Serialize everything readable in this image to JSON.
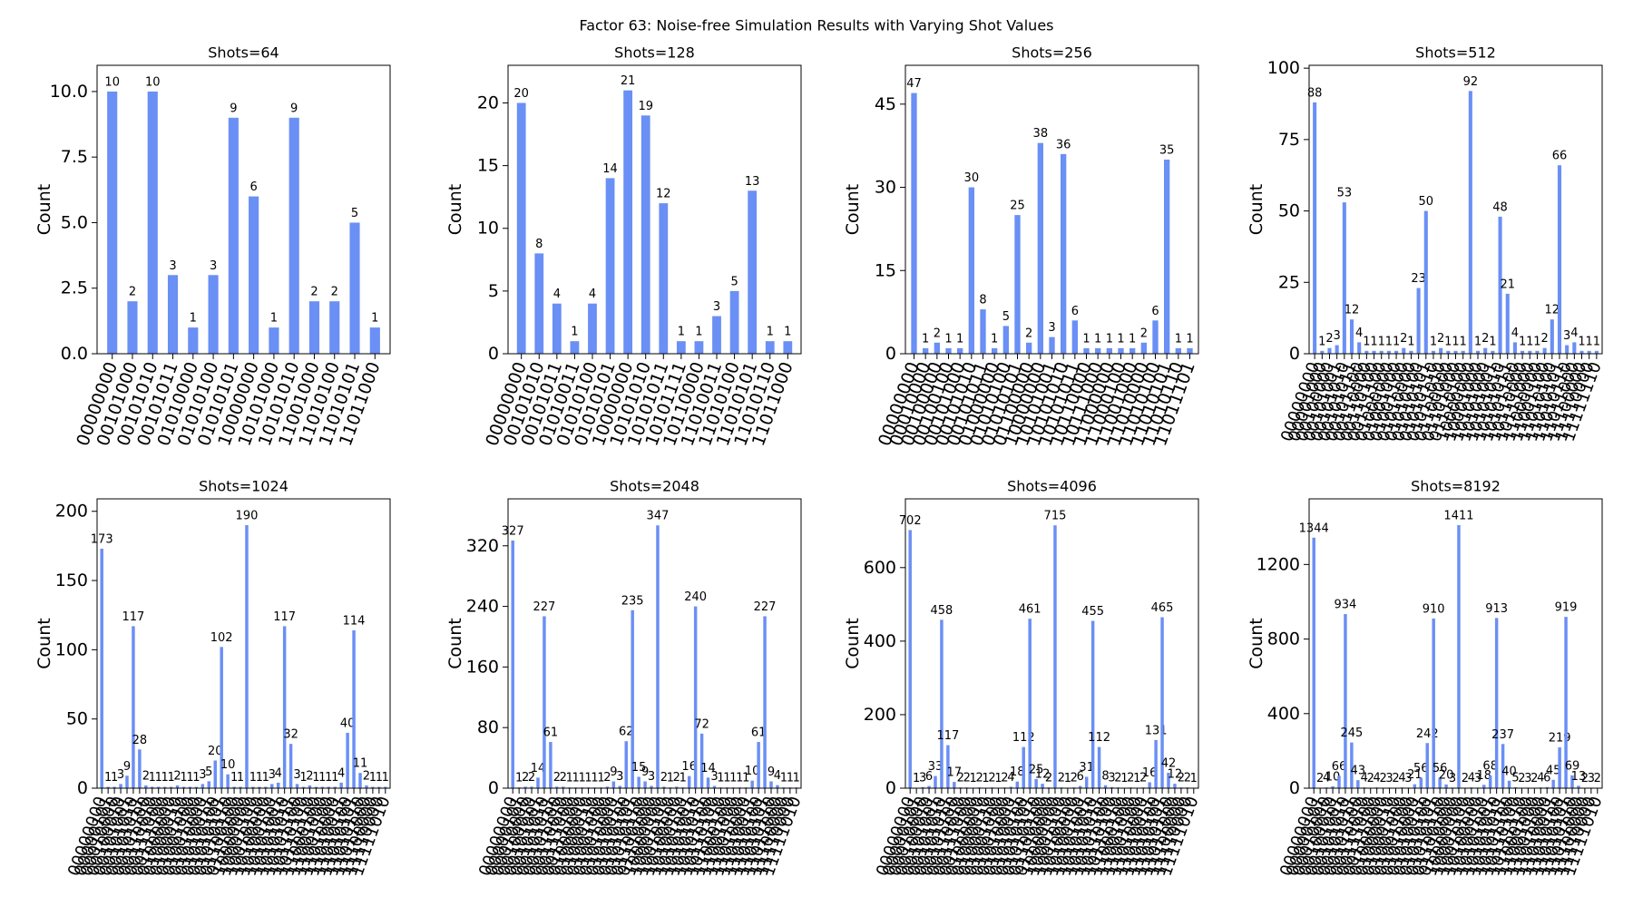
{
  "title": "Factor 63: Noise-free Simulation Results with Varying Shot Values",
  "chart_data": [
    {
      "type": "bar",
      "title": "Shots=64",
      "ylabel": "Count",
      "color": "#6a8ff5",
      "categories": [
        "00000000",
        "00101000",
        "00101010",
        "00101011",
        "01010000",
        "01010100",
        "01010101",
        "10000000",
        "10101000",
        "10101010",
        "11001000",
        "11010100",
        "11010101",
        "11011000"
      ],
      "values": [
        10,
        2,
        10,
        3,
        1,
        3,
        9,
        6,
        1,
        9,
        2,
        2,
        5,
        1
      ],
      "ylim": [
        0,
        11
      ],
      "yticks": [
        {
          "value": 0,
          "label": "0.0"
        },
        {
          "value": 2.5,
          "label": "2.5"
        },
        {
          "value": 5,
          "label": "5.0"
        },
        {
          "value": 7.5,
          "label": "7.5"
        },
        {
          "value": 10,
          "label": "10.0"
        }
      ]
    },
    {
      "type": "bar",
      "title": "Shots=128",
      "ylabel": "Count",
      "color": "#6a8ff5",
      "categories": [
        "00000000",
        "00101010",
        "00101011",
        "01010011",
        "01010100",
        "01010101",
        "10000000",
        "10101010",
        "10101011",
        "10101111",
        "10110000",
        "11010011",
        "11010100",
        "11010101",
        "11010110",
        "11011000"
      ],
      "values": [
        20,
        8,
        4,
        1,
        4,
        14,
        21,
        19,
        12,
        1,
        1,
        3,
        5,
        13,
        1,
        1
      ],
      "ylim": [
        0,
        23
      ],
      "yticks": [
        0,
        5,
        10,
        15,
        20
      ]
    },
    {
      "type": "bar",
      "title": "Shots=256",
      "ylabel": "Count",
      "color": "#6a8ff5",
      "categories": [
        "00000000",
        "00010000",
        "00100000",
        "00100100",
        "00101000",
        "00101010",
        "00101011",
        "01000000",
        "01010100",
        "01010101",
        "01100000",
        "10000000",
        "10101001",
        "10101010",
        "10101011",
        "10110000",
        "10111000",
        "11000000",
        "11000100",
        "11001000",
        "11010000",
        "11010100",
        "11010101",
        "11010110",
        "11011101"
      ],
      "values": [
        47,
        1,
        2,
        1,
        1,
        30,
        8,
        1,
        5,
        25,
        2,
        38,
        3,
        36,
        6,
        1,
        1,
        1,
        1,
        1,
        2,
        6,
        35,
        1,
        1
      ],
      "ylim": [
        0,
        52
      ],
      "yticks": [
        0,
        15,
        30,
        45
      ]
    },
    {
      "type": "bar",
      "title": "Shots=512",
      "ylabel": "Count",
      "color": "#6a8ff5",
      "categories": [
        "00000000",
        "00001000",
        "00100000",
        "00101001",
        "00101010",
        "00101011",
        "00101100",
        "00110000",
        "00110100",
        "00111100",
        "01000000",
        "01001000",
        "01001100",
        "01010000",
        "01010100",
        "01010101",
        "01010110",
        "01011010",
        "01100000",
        "01101000",
        "01110100",
        "10000000",
        "10001000",
        "10101000",
        "10101001",
        "10101010",
        "10101011",
        "10101100",
        "10110000",
        "10111000",
        "11000000",
        "11001100",
        "11010100",
        "11010101",
        "11010110",
        "11011000",
        "11100000",
        "11110000",
        "11111110"
      ],
      "values": [
        88,
        1,
        2,
        3,
        53,
        12,
        4,
        1,
        1,
        1,
        1,
        1,
        2,
        1,
        23,
        50,
        1,
        2,
        1,
        1,
        1,
        92,
        1,
        2,
        1,
        48,
        21,
        4,
        1,
        1,
        1,
        2,
        12,
        66,
        3,
        4,
        1,
        1,
        1
      ],
      "ylim": [
        0,
        101
      ],
      "yticks": [
        0,
        25,
        50,
        75,
        100
      ]
    },
    {
      "type": "bar",
      "title": "Shots=1024",
      "ylabel": "Count",
      "color": "#6a8ff5",
      "categories": [
        "00000000",
        "00000101",
        "00010000",
        "00100010",
        "00101001",
        "00101010",
        "00101011",
        "00101100",
        "00110010",
        "00111000",
        "00111100",
        "01000000",
        "01000010",
        "01000110",
        "01001000",
        "01001100",
        "01010000",
        "01010011",
        "01010100",
        "01010101",
        "01010110",
        "01100100",
        "01110000",
        "10000000",
        "10001100",
        "10010110",
        "10100000",
        "10100110",
        "10101001",
        "10101010",
        "10101011",
        "10101100",
        "10110100",
        "10111110",
        "11000100",
        "11001000",
        "11001100",
        "11010000",
        "11010011",
        "11010100",
        "11010101",
        "11010110",
        "11011000",
        "11100000",
        "11110000",
        "11111010"
      ],
      "values": [
        173,
        1,
        1,
        3,
        9,
        117,
        28,
        2,
        1,
        1,
        1,
        1,
        2,
        1,
        1,
        1,
        3,
        5,
        20,
        102,
        10,
        1,
        1,
        190,
        1,
        1,
        1,
        3,
        4,
        117,
        32,
        3,
        1,
        2,
        1,
        1,
        1,
        1,
        4,
        40,
        114,
        11,
        2,
        1,
        1,
        1
      ],
      "ylim": [
        0,
        209
      ],
      "yticks": [
        0,
        50,
        100,
        150,
        200
      ]
    },
    {
      "type": "bar",
      "title": "Shots=2048",
      "ylabel": "Count",
      "color": "#6a8ff5",
      "categories": [
        "00000000",
        "00000101",
        "00010000",
        "00100010",
        "00101001",
        "00101010",
        "00101011",
        "00101100",
        "00110010",
        "00111000",
        "00111100",
        "01000000",
        "01000010",
        "01000110",
        "01001000",
        "01001100",
        "01010000",
        "01010011",
        "01010100",
        "01010101",
        "01010110",
        "01100100",
        "01110000",
        "10000000",
        "10001100",
        "10010110",
        "10100000",
        "10100110",
        "10101001",
        "10101010",
        "10101011",
        "10101100",
        "10110100",
        "10111110",
        "11000100",
        "11001000",
        "11001100",
        "11010000",
        "11010011",
        "11010100",
        "11010101",
        "11010110",
        "11011000",
        "11100000",
        "11110000",
        "11111010"
      ],
      "values": [
        327,
        1,
        2,
        2,
        14,
        227,
        61,
        2,
        2,
        1,
        1,
        1,
        1,
        1,
        1,
        2,
        9,
        3,
        62,
        235,
        15,
        9,
        3,
        347,
        2,
        1,
        2,
        1,
        16,
        240,
        72,
        14,
        3,
        1,
        1,
        1,
        1,
        1,
        10,
        61,
        227,
        9,
        4,
        1,
        1,
        1
      ],
      "ylim": [
        0,
        382
      ],
      "yticks": [
        0,
        80,
        160,
        240,
        320
      ]
    },
    {
      "type": "bar",
      "title": "Shots=4096",
      "ylabel": "Count",
      "color": "#6a8ff5",
      "categories": [
        "00000000",
        "00000101",
        "00010000",
        "00100010",
        "00101001",
        "00101010",
        "00101011",
        "00101100",
        "00110010",
        "00111000",
        "00111100",
        "01000000",
        "01000010",
        "01000110",
        "01001000",
        "01001100",
        "01010000",
        "01010011",
        "01010100",
        "01010101",
        "01010110",
        "01100100",
        "01110000",
        "10000000",
        "10001100",
        "10010110",
        "10100000",
        "10100110",
        "10101001",
        "10101010",
        "10101011",
        "10101100",
        "10110100",
        "10111110",
        "11000100",
        "11001000",
        "11001100",
        "11010000",
        "11010011",
        "11010100",
        "11010101",
        "11010110",
        "11011000",
        "11100000",
        "11110000",
        "11111010"
      ],
      "values": [
        702,
        1,
        3,
        6,
        33,
        458,
        117,
        17,
        2,
        2,
        1,
        2,
        1,
        2,
        1,
        2,
        4,
        18,
        112,
        461,
        25,
        12,
        2,
        715,
        2,
        1,
        2,
        6,
        31,
        455,
        112,
        8,
        3,
        2,
        1,
        2,
        1,
        2,
        16,
        131,
        465,
        42,
        12,
        2,
        2,
        1
      ],
      "ylim": [
        0,
        787
      ],
      "yticks": [
        0,
        200,
        400,
        600
      ]
    },
    {
      "type": "bar",
      "title": "Shots=8192",
      "ylabel": "Count",
      "color": "#6a8ff5",
      "categories": [
        "00000000",
        "00000101",
        "00010000",
        "00100010",
        "00101001",
        "00101010",
        "00101011",
        "00101100",
        "00110010",
        "00111000",
        "00111100",
        "01000000",
        "01000010",
        "01000110",
        "01001000",
        "01001100",
        "01010000",
        "01010011",
        "01010100",
        "01010101",
        "01010110",
        "01100100",
        "01110000",
        "10000000",
        "10001100",
        "10010110",
        "10100000",
        "10100110",
        "10101001",
        "10101010",
        "10101011",
        "10101100",
        "10110100",
        "10111110",
        "11000100",
        "11001000",
        "11001100",
        "11010000",
        "11010011",
        "11010100",
        "11010101",
        "11010110",
        "11011000",
        "11100000",
        "11110000",
        "11111010"
      ],
      "values": [
        1344,
        2,
        4,
        10,
        66,
        934,
        245,
        43,
        4,
        2,
        4,
        2,
        3,
        2,
        4,
        3,
        21,
        56,
        242,
        910,
        56,
        20,
        3,
        1411,
        2,
        4,
        3,
        18,
        68,
        913,
        237,
        40,
        5,
        2,
        3,
        2,
        4,
        6,
        45,
        219,
        919,
        69,
        13,
        2,
        3,
        2
      ],
      "ylim": [
        0,
        1552
      ],
      "yticks": [
        0,
        400,
        800,
        1200
      ]
    }
  ]
}
